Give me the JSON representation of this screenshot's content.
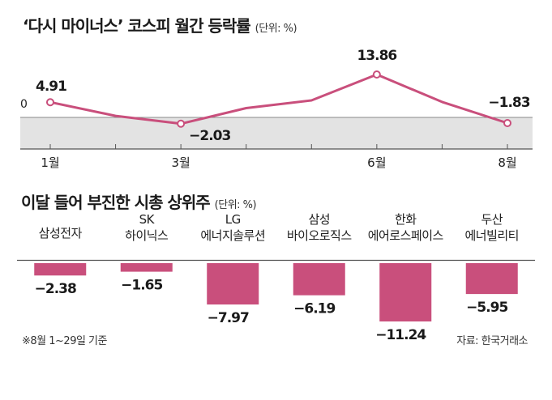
{
  "line_title": "‘다시 마이너스’ 코스피 월간 등락률",
  "line_unit": "(단위: %)",
  "bar_title": "이달 들어 부진한 시총 상위주",
  "bar_unit": "(단위: %)",
  "footnote": "※8월 1~29일 기준",
  "source": "자료: 한국거래소",
  "colors": {
    "accent": "#c94f7c",
    "band": "#e3e3e3",
    "axis": "#555555"
  },
  "chart_data": [
    {
      "type": "line",
      "x": [
        1,
        2,
        3,
        4,
        5,
        6,
        7,
        8
      ],
      "values": [
        4.91,
        0.5,
        -2.03,
        3.0,
        5.5,
        13.86,
        5.0,
        -1.83
      ],
      "labeled_points": [
        {
          "index": 0,
          "label": "4.91"
        },
        {
          "index": 2,
          "label": "-2.03"
        },
        {
          "index": 5,
          "label": "13.86"
        },
        {
          "index": 7,
          "label": "-1.83"
        }
      ],
      "x_tick_labels": [
        {
          "index": 0,
          "label": "1월"
        },
        {
          "index": 2,
          "label": "3월"
        },
        {
          "index": 5,
          "label": "6월"
        },
        {
          "index": 7,
          "label": "8월"
        }
      ],
      "zero_label": "0",
      "ylim": [
        -5,
        16
      ]
    },
    {
      "type": "bar",
      "categories": [
        [
          "삼성전자"
        ],
        [
          "SK",
          "하이닉스"
        ],
        [
          "LG",
          "에너지솔루션"
        ],
        [
          "삼성",
          "바이오로직스"
        ],
        [
          "한화",
          "에어로스페이스"
        ],
        [
          "두산",
          "에너빌리티"
        ]
      ],
      "values": [
        -2.38,
        -1.65,
        -7.97,
        -6.19,
        -11.24,
        -5.95
      ],
      "value_labels": [
        "-2.38",
        "-1.65",
        "-7.97",
        "-6.19",
        "-11.24",
        "-5.95"
      ],
      "ylim": [
        -12,
        0
      ]
    }
  ]
}
